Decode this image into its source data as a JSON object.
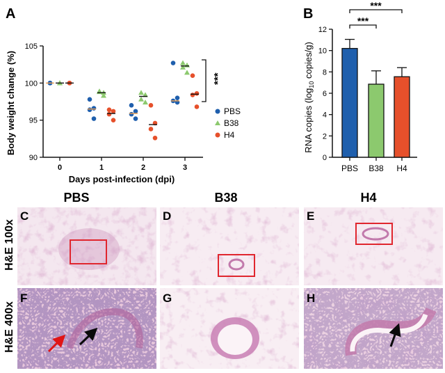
{
  "panels": {
    "a": "A",
    "b": "B",
    "c": "C",
    "d": "D",
    "e": "E",
    "f": "F",
    "g": "G",
    "h": "H"
  },
  "colors": {
    "PBS": "#1f5fad",
    "B38": "#8cc96e",
    "H4": "#e6502b",
    "box": "#e0262e",
    "arrow_red": "#e01515",
    "arrow_black": "#0a0a0a",
    "tissue_bg": "#f3e6ee",
    "tissue_stain": "#c78db6",
    "tissue_nuclei": "#5a3a7a"
  },
  "chart_data": [
    {
      "type": "scatter",
      "panel": "A",
      "xlabel": "Days post-infection (dpi)",
      "ylabel": "Body weight change (%)",
      "x_categories": [
        "0",
        "1",
        "2",
        "3"
      ],
      "ylim": [
        90,
        105
      ],
      "yticks": [
        "90",
        "95",
        "100",
        "105"
      ],
      "legend": [
        "PBS",
        "B38",
        "H4"
      ],
      "legend_position": "right",
      "significance": "***",
      "series": [
        {
          "name": "PBS",
          "marker": "circle",
          "points": [
            [
              0,
              100
            ],
            [
              0,
              100
            ],
            [
              0,
              100
            ],
            [
              0,
              100
            ],
            [
              0,
              100
            ],
            [
              1,
              97.8
            ],
            [
              1,
              96.6
            ],
            [
              1,
              96.4
            ],
            [
              1,
              95.2
            ],
            [
              2,
              97.0
            ],
            [
              2,
              96.2
            ],
            [
              2,
              95.8
            ],
            [
              2,
              95.2
            ],
            [
              3,
              102.7
            ],
            [
              3,
              98.0
            ],
            [
              3,
              97.6
            ],
            [
              3,
              97.4
            ]
          ],
          "means": [
            100,
            96.5,
            95.9,
            97.6
          ]
        },
        {
          "name": "B38",
          "marker": "triangle",
          "points": [
            [
              0,
              100
            ],
            [
              0,
              100
            ],
            [
              0,
              100
            ],
            [
              1,
              98.9
            ],
            [
              1,
              98.7
            ],
            [
              1,
              98.8
            ],
            [
              1,
              98.3
            ],
            [
              2,
              98.7
            ],
            [
              2,
              98.4
            ],
            [
              2,
              97.8
            ],
            [
              2,
              97.4
            ],
            [
              3,
              102.7
            ],
            [
              3,
              102.4
            ],
            [
              3,
              102.1
            ],
            [
              3,
              101.4
            ]
          ],
          "means": [
            100,
            98.7,
            98.2,
            102.3
          ]
        },
        {
          "name": "H4",
          "marker": "circle",
          "points": [
            [
              0,
              100
            ],
            [
              0,
              100
            ],
            [
              0,
              100
            ],
            [
              1,
              96.4
            ],
            [
              1,
              96.2
            ],
            [
              1,
              95.8
            ],
            [
              1,
              95.0
            ],
            [
              2,
              97.0
            ],
            [
              2,
              94.6
            ],
            [
              2,
              93.8
            ],
            [
              2,
              92.6
            ],
            [
              3,
              101.0
            ],
            [
              3,
              98.6
            ],
            [
              3,
              98.4
            ],
            [
              3,
              96.8
            ]
          ],
          "means": [
            100,
            95.9,
            94.4,
            98.5
          ]
        }
      ]
    },
    {
      "type": "bar",
      "panel": "B",
      "categories": [
        "PBS",
        "B38",
        "H4"
      ],
      "values": [
        10.2,
        6.85,
        7.55
      ],
      "errors": [
        0.85,
        1.25,
        0.85
      ],
      "ylabel": "RNA copies (log10 copies/g)",
      "ylim": [
        0,
        12
      ],
      "yticks": [
        "0",
        "2",
        "4",
        "6",
        "8",
        "10",
        "12"
      ],
      "significance": [
        {
          "from": "PBS",
          "to": "B38",
          "label": "***"
        },
        {
          "from": "PBS",
          "to": "H4",
          "label": "***"
        }
      ]
    }
  ],
  "histology": {
    "columns": [
      "PBS",
      "B38",
      "H4"
    ],
    "rows": [
      "H&E 100x",
      "H&E 400x"
    ]
  }
}
